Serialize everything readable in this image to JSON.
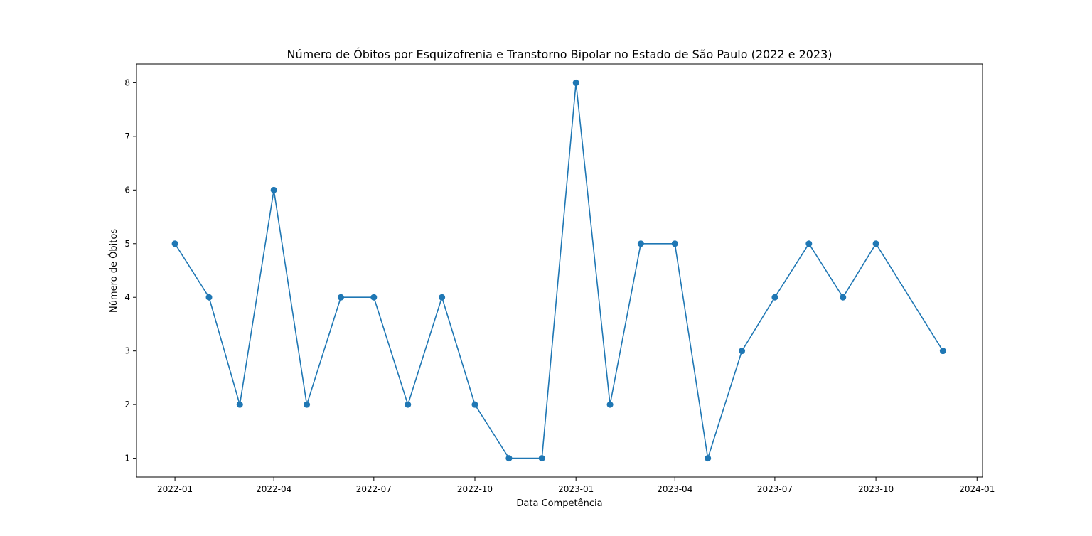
{
  "chart_data": {
    "type": "line",
    "title": "Número de Óbitos por Esquizofrenia e Transtorno Bipolar no Estado de São Paulo (2022 e 2023)",
    "xlabel": "Data Competência",
    "ylabel": "Número de Óbitos",
    "x": [
      "2022-01",
      "2022-02",
      "2022-03",
      "2022-04",
      "2022-05",
      "2022-06",
      "2022-07",
      "2022-08",
      "2022-09",
      "2022-10",
      "2022-11",
      "2022-12",
      "2023-01",
      "2023-02",
      "2023-03",
      "2023-04",
      "2023-05",
      "2023-06",
      "2023-07",
      "2023-08",
      "2023-09",
      "2023-10",
      "2023-12"
    ],
    "series": [
      {
        "values": [
          5,
          4,
          2,
          6,
          2,
          4,
          4,
          2,
          4,
          2,
          1,
          1,
          8,
          2,
          5,
          5,
          1,
          3,
          4,
          5,
          4,
          5,
          3
        ]
      }
    ],
    "xlim": [
      "2021-11-27",
      "2024-01-06"
    ],
    "ylim": [
      0.65,
      8.35
    ],
    "x_ticks": [
      "2022-01",
      "2022-04",
      "2022-07",
      "2022-10",
      "2023-01",
      "2023-04",
      "2023-07",
      "2023-10",
      "2024-01"
    ],
    "y_ticks": [
      1,
      2,
      3,
      4,
      5,
      6,
      7,
      8
    ],
    "grid": false,
    "color": "#1f77b4"
  }
}
